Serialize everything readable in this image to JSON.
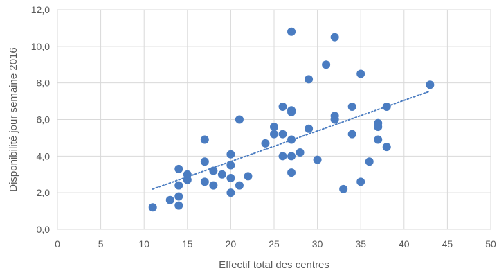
{
  "chart_data": {
    "type": "scatter",
    "title": "",
    "xlabel": "Effectif total des centres",
    "ylabel": "Disponibilité jour semaine 2016",
    "xlim": [
      0,
      50
    ],
    "ylim": [
      0,
      12
    ],
    "x_ticks": [
      0,
      5,
      10,
      15,
      20,
      25,
      30,
      35,
      40,
      45,
      50
    ],
    "x_tick_labels": [
      "0",
      "5",
      "10",
      "15",
      "20",
      "25",
      "30",
      "35",
      "40",
      "45",
      "50"
    ],
    "y_ticks": [
      0,
      2,
      4,
      6,
      8,
      10,
      12
    ],
    "y_tick_labels": [
      "0,0",
      "2,0",
      "4,0",
      "6,0",
      "8,0",
      "10,0",
      "12,0"
    ],
    "grid": true,
    "legend": "none",
    "colors": {
      "points": "#4a7cc1",
      "trendline": "#4a7cc1",
      "grid": "#d9d9d9",
      "text": "#595959"
    },
    "trendline": {
      "type": "linear",
      "style": "dotted",
      "x": [
        11,
        43
      ],
      "y": [
        2.2,
        7.55
      ]
    },
    "series": [
      {
        "points": [
          [
            11,
            1.2
          ],
          [
            13,
            1.6
          ],
          [
            14,
            1.3
          ],
          [
            14,
            1.8
          ],
          [
            14,
            2.4
          ],
          [
            14,
            3.3
          ],
          [
            15,
            2.7
          ],
          [
            15,
            3.0
          ],
          [
            17,
            2.6
          ],
          [
            17,
            3.7
          ],
          [
            17,
            4.9
          ],
          [
            18,
            2.4
          ],
          [
            18,
            3.2
          ],
          [
            19,
            3.0
          ],
          [
            20,
            2.0
          ],
          [
            20,
            2.8
          ],
          [
            20,
            3.5
          ],
          [
            20,
            4.1
          ],
          [
            21,
            2.4
          ],
          [
            21,
            6.0
          ],
          [
            22,
            2.9
          ],
          [
            24,
            4.7
          ],
          [
            25,
            5.2
          ],
          [
            25,
            5.6
          ],
          [
            26,
            4.0
          ],
          [
            26,
            5.2
          ],
          [
            26,
            6.7
          ],
          [
            27,
            3.1
          ],
          [
            27,
            4.0
          ],
          [
            27,
            4.9
          ],
          [
            27,
            6.4
          ],
          [
            27,
            6.5
          ],
          [
            27,
            10.8
          ],
          [
            28,
            4.2
          ],
          [
            29,
            5.5
          ],
          [
            29,
            8.2
          ],
          [
            30,
            3.8
          ],
          [
            31,
            9.0
          ],
          [
            32,
            6.0
          ],
          [
            32,
            6.2
          ],
          [
            32,
            10.5
          ],
          [
            33,
            2.2
          ],
          [
            34,
            5.2
          ],
          [
            34,
            6.7
          ],
          [
            35,
            2.6
          ],
          [
            35,
            8.5
          ],
          [
            36,
            3.7
          ],
          [
            37,
            4.9
          ],
          [
            37,
            5.6
          ],
          [
            37,
            5.8
          ],
          [
            38,
            4.5
          ],
          [
            38,
            6.7
          ],
          [
            43,
            7.9
          ]
        ]
      }
    ]
  }
}
